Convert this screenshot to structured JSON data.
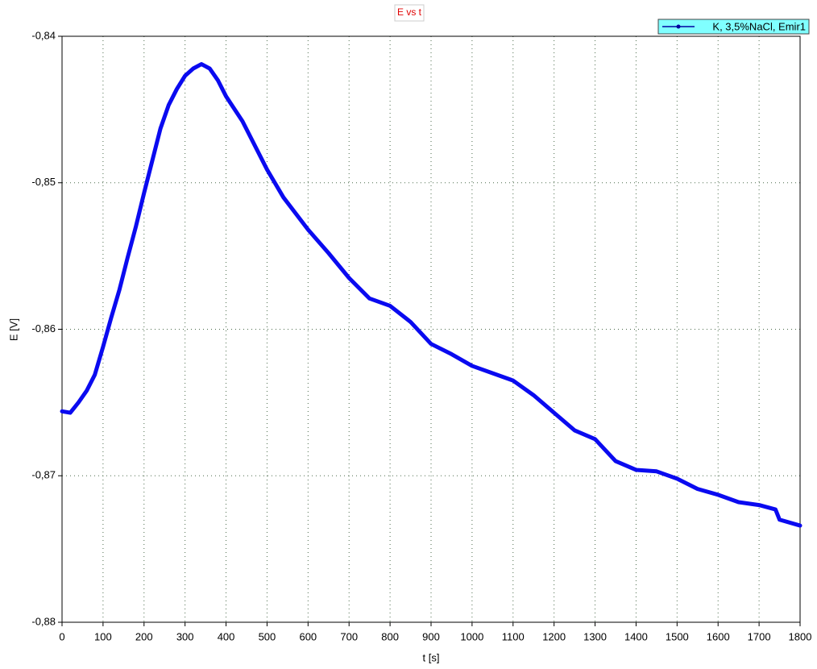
{
  "chart_data": {
    "type": "line",
    "title": "E vs t",
    "x_label": "t [s]",
    "y_label": "E [V]",
    "x": [
      0,
      20,
      40,
      60,
      80,
      100,
      120,
      140,
      160,
      180,
      200,
      220,
      240,
      260,
      280,
      300,
      320,
      340,
      360,
      380,
      400,
      440,
      480,
      500,
      540,
      600,
      650,
      700,
      750,
      800,
      850,
      900,
      950,
      1000,
      1100,
      1150,
      1200,
      1250,
      1300,
      1350,
      1400,
      1450,
      1500,
      1550,
      1600,
      1650,
      1700,
      1740,
      1750,
      1800
    ],
    "series": [
      {
        "name": "K, 3,5%NaCl, Emir1",
        "color": "#0a0af0",
        "values": [
          -0.8656,
          -0.8657,
          -0.865,
          -0.8642,
          -0.8631,
          -0.8612,
          -0.8592,
          -0.8573,
          -0.8551,
          -0.853,
          -0.8507,
          -0.8485,
          -0.8463,
          -0.8447,
          -0.8436,
          -0.8427,
          -0.8422,
          -0.8419,
          -0.8422,
          -0.843,
          -0.8441,
          -0.8458,
          -0.848,
          -0.8491,
          -0.851,
          -0.8532,
          -0.8548,
          -0.8565,
          -0.8579,
          -0.8584,
          -0.8595,
          -0.861,
          -0.8617,
          -0.8625,
          -0.8635,
          -0.8645,
          -0.8657,
          -0.8669,
          -0.8675,
          -0.869,
          -0.8696,
          -0.8697,
          -0.8702,
          -0.8709,
          -0.8713,
          -0.8718,
          -0.872,
          -0.8723,
          -0.873,
          -0.8734
        ]
      }
    ],
    "xlim": [
      0,
      1800
    ],
    "xticks": [
      0,
      100,
      200,
      300,
      400,
      500,
      600,
      700,
      800,
      900,
      1000,
      1100,
      1200,
      1300,
      1400,
      1500,
      1600,
      1700,
      1800
    ],
    "ylim": [
      -0.88,
      -0.84
    ],
    "yticks": [
      {
        "value": -0.88,
        "label": "-0,88"
      },
      {
        "value": -0.87,
        "label": "-0,87"
      },
      {
        "value": -0.86,
        "label": "-0,86"
      },
      {
        "value": -0.85,
        "label": "-0,85"
      },
      {
        "value": -0.84,
        "label": "-0,84"
      }
    ],
    "grid": true,
    "legend": "top-right"
  }
}
